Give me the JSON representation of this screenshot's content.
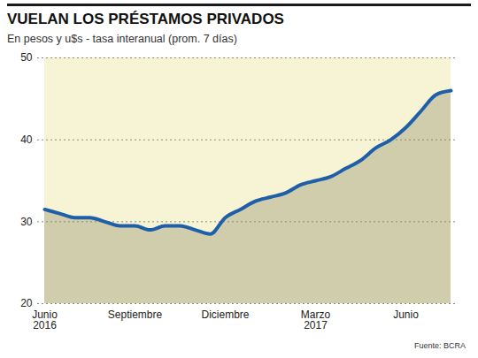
{
  "chart_data": {
    "type": "line",
    "title": "VUELAN LOS PRÉSTAMOS PRIVADOS",
    "subtitle": "En pesos y u$s - tasa interanual (prom. 7 días)",
    "source": "Fuente: BCRA",
    "categories": [
      "Junio\n2016",
      null,
      null,
      null,
      null,
      null,
      "Septiembre",
      null,
      null,
      null,
      null,
      null,
      "Diciembre",
      null,
      null,
      null,
      null,
      null,
      "Marzo\n2017",
      null,
      null,
      null,
      null,
      null,
      "Junio",
      null,
      null,
      null
    ],
    "series": [
      {
        "name": "Préstamos privados",
        "color": "#1f5fa8",
        "values": [
          31.5,
          31,
          30.5,
          30.5,
          30,
          29.5,
          29.5,
          29,
          29.5,
          29.5,
          29,
          28.5,
          30.5,
          31.5,
          32.5,
          33,
          33.5,
          34.5,
          35,
          35.5,
          36.5,
          37.5,
          39,
          40,
          41.5,
          43.5,
          45.5,
          46
        ]
      }
    ],
    "ylim": [
      20,
      50
    ],
    "yticks": [
      20,
      30,
      40,
      50
    ],
    "grid": true
  }
}
